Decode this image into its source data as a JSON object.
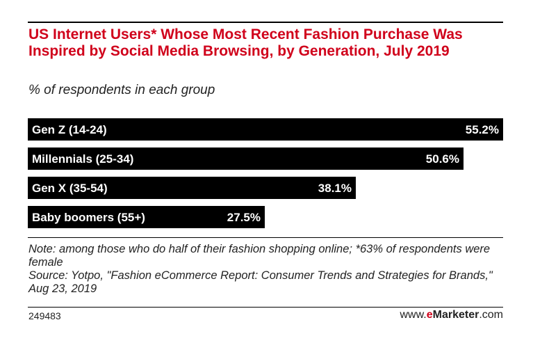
{
  "chart_data": {
    "type": "bar",
    "orientation": "horizontal",
    "title": "US Internet Users* Whose Most Recent Fashion Purchase Was Inspired by Social Media Browsing, by Generation, July 2019",
    "subtitle": "% of respondents in each group",
    "categories": [
      "Gen Z (14-24)",
      "Millennials (25-34)",
      "Gen X (35-54)",
      "Baby boomers (55+)"
    ],
    "values": [
      55.2,
      50.6,
      38.1,
      27.5
    ],
    "value_labels": [
      "55.2%",
      "50.6%",
      "38.1%",
      "27.5%"
    ],
    "xlim": [
      0,
      55.2
    ],
    "grid": false,
    "legend": "none",
    "bar_color": "#000000",
    "label_color": "#ffffff"
  },
  "footer": {
    "note": "Note: among those who do half of their fashion shopping online; *63% of respondents were female",
    "source": "Source: Yotpo, \"Fashion eCommerce Report: Consumer Trends and Strategies for Brands,\" Aug 23, 2019",
    "chart_id": "249483",
    "brand_prefix": "www.",
    "brand_e": "e",
    "brand_name": "Marketer",
    "brand_suffix": ".com"
  },
  "colors": {
    "title": "#d0021b",
    "brand_accent": "#d0021b"
  }
}
